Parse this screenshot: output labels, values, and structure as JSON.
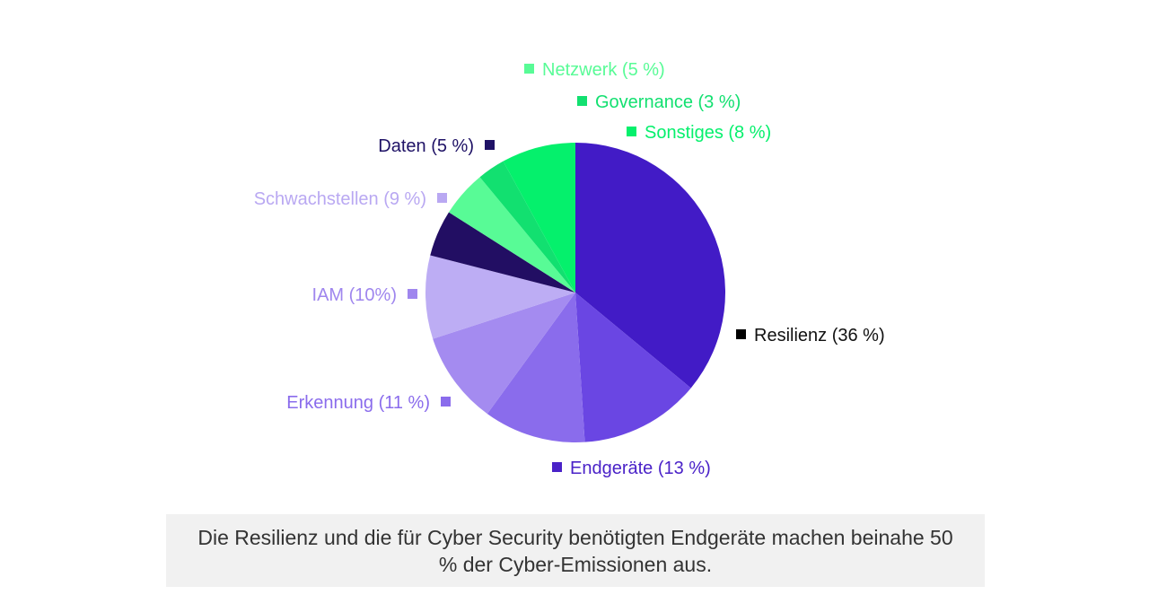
{
  "chart_data": {
    "type": "pie",
    "start": "12 o'clock",
    "direction": "clockwise",
    "slices": [
      {
        "label": "Resilienz (36 %)",
        "value": 36,
        "color": "#421bc6",
        "label_color": "#111111",
        "marker_color": "#000000",
        "side": "right"
      },
      {
        "label": "Endgeräte (13 %)",
        "value": 13,
        "color": "#6a46e3",
        "label_color": "#4a22c8",
        "marker_color": "#4a22c8",
        "side": "right"
      },
      {
        "label": "Erkennung (11 %)",
        "value": 11,
        "color": "#8a6cec",
        "label_color": "#8a6cec",
        "marker_color": "#8a6cec",
        "side": "left"
      },
      {
        "label": "IAM (10%)",
        "value": 10,
        "color": "#a48bf0",
        "label_color": "#9f86ee",
        "marker_color": "#9f86ee",
        "side": "left"
      },
      {
        "label": "Schwachstellen (9 %)",
        "value": 9,
        "color": "#bdadf4",
        "label_color": "#b9a8f2",
        "marker_color": "#b9a8f2",
        "side": "left"
      },
      {
        "label": "Daten (5 %)",
        "value": 5,
        "color": "#220e63",
        "label_color": "#1f1266",
        "marker_color": "#1f1266",
        "side": "left"
      },
      {
        "label": "Netzwerk (5 %)",
        "value": 5,
        "color": "#58fb96",
        "label_color": "#58fb96",
        "marker_color": "#58fb96",
        "side": "right"
      },
      {
        "label": "Governance (3 %)",
        "value": 3,
        "color": "#12e070",
        "label_color": "#12e070",
        "marker_color": "#12e070",
        "side": "right"
      },
      {
        "label": "Sonstiges (8 %)",
        "value": 8,
        "color": "#05f06c",
        "label_color": "#05f06c",
        "marker_color": "#05f06c",
        "side": "right"
      }
    ]
  },
  "caption": "Die Resilienz und die für Cyber Security benötigten Endgeräte machen beinahe 50 % der Cyber-Emissionen aus."
}
